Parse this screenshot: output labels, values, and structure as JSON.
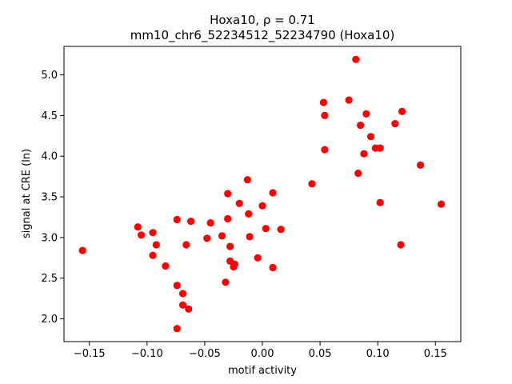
{
  "chart_data": {
    "type": "scatter",
    "title_line1": "Hoxa10, ρ = 0.71",
    "title_line2": "mm10_chr6_52234512_52234790 (Hoxa10)",
    "xlabel": "motif activity",
    "ylabel": "signal at CRE (ln)",
    "xlim": [
      -0.172,
      0.172
    ],
    "ylim": [
      1.72,
      5.35
    ],
    "xticks": [
      -0.15,
      -0.1,
      -0.05,
      0.0,
      0.05,
      0.1,
      0.15
    ],
    "xtick_labels": [
      "−0.15",
      "−0.10",
      "−0.05",
      "0.00",
      "0.05",
      "0.10",
      "0.15"
    ],
    "yticks": [
      2.0,
      2.5,
      3.0,
      3.5,
      4.0,
      4.5,
      5.0
    ],
    "ytick_labels": [
      "2.0",
      "2.5",
      "3.0",
      "3.5",
      "4.0",
      "4.5",
      "5.0"
    ],
    "marker_color": "#ff0000",
    "grid": false,
    "points": [
      {
        "x": -0.156,
        "y": 2.84
      },
      {
        "x": -0.108,
        "y": 3.13
      },
      {
        "x": -0.105,
        "y": 3.03
      },
      {
        "x": -0.095,
        "y": 3.06
      },
      {
        "x": -0.095,
        "y": 2.78
      },
      {
        "x": -0.092,
        "y": 2.91
      },
      {
        "x": -0.084,
        "y": 2.65
      },
      {
        "x": -0.074,
        "y": 3.22
      },
      {
        "x": -0.074,
        "y": 2.41
      },
      {
        "x": -0.074,
        "y": 1.88
      },
      {
        "x": -0.069,
        "y": 2.31
      },
      {
        "x": -0.069,
        "y": 2.17
      },
      {
        "x": -0.066,
        "y": 2.91
      },
      {
        "x": -0.064,
        "y": 2.12
      },
      {
        "x": -0.062,
        "y": 3.2
      },
      {
        "x": -0.048,
        "y": 2.99
      },
      {
        "x": -0.045,
        "y": 3.18
      },
      {
        "x": -0.035,
        "y": 3.02
      },
      {
        "x": -0.032,
        "y": 2.45
      },
      {
        "x": -0.03,
        "y": 3.23
      },
      {
        "x": -0.03,
        "y": 3.54
      },
      {
        "x": -0.028,
        "y": 2.71
      },
      {
        "x": -0.028,
        "y": 2.89
      },
      {
        "x": -0.025,
        "y": 2.64
      },
      {
        "x": -0.024,
        "y": 2.67
      },
      {
        "x": -0.02,
        "y": 3.42
      },
      {
        "x": -0.013,
        "y": 3.71
      },
      {
        "x": -0.012,
        "y": 3.29
      },
      {
        "x": -0.011,
        "y": 3.01
      },
      {
        "x": -0.004,
        "y": 2.75
      },
      {
        "x": 0.0,
        "y": 3.39
      },
      {
        "x": 0.003,
        "y": 3.11
      },
      {
        "x": 0.009,
        "y": 3.55
      },
      {
        "x": 0.009,
        "y": 2.63
      },
      {
        "x": 0.016,
        "y": 3.1
      },
      {
        "x": 0.043,
        "y": 3.66
      },
      {
        "x": 0.053,
        "y": 4.66
      },
      {
        "x": 0.054,
        "y": 4.5
      },
      {
        "x": 0.054,
        "y": 4.08
      },
      {
        "x": 0.075,
        "y": 4.69
      },
      {
        "x": 0.081,
        "y": 5.19
      },
      {
        "x": 0.083,
        "y": 3.79
      },
      {
        "x": 0.085,
        "y": 4.38
      },
      {
        "x": 0.088,
        "y": 4.03
      },
      {
        "x": 0.09,
        "y": 4.52
      },
      {
        "x": 0.094,
        "y": 4.24
      },
      {
        "x": 0.098,
        "y": 4.1
      },
      {
        "x": 0.102,
        "y": 4.1
      },
      {
        "x": 0.102,
        "y": 3.43
      },
      {
        "x": 0.115,
        "y": 4.4
      },
      {
        "x": 0.12,
        "y": 2.91
      },
      {
        "x": 0.121,
        "y": 4.55
      },
      {
        "x": 0.137,
        "y": 3.89
      },
      {
        "x": 0.155,
        "y": 3.41
      }
    ]
  }
}
